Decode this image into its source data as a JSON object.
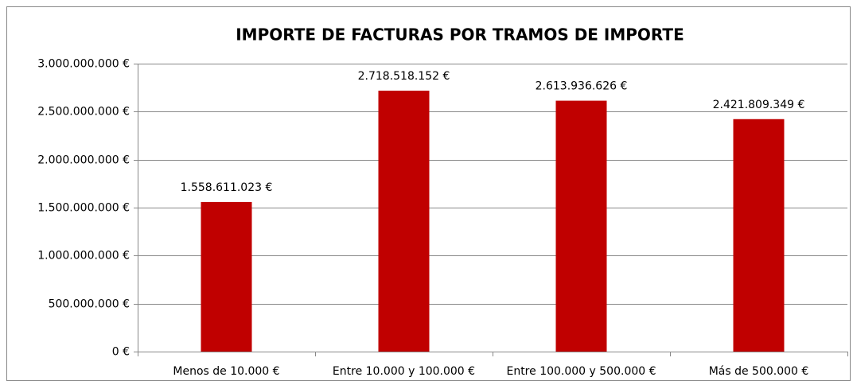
{
  "chart_data": {
    "type": "bar",
    "title": "IMPORTE DE FACTURAS POR TRAMOS DE IMPORTE",
    "categories": [
      "Menos de 10.000 €",
      "Entre 10.000 y 100.000 €",
      "Entre 100.000 y 500.000 €",
      "Más de 500.000 €"
    ],
    "values": [
      1558611023,
      2718518152,
      2613936626,
      2421809349
    ],
    "value_labels": [
      "1.558.611.023 €",
      "2.718.518.152 €",
      "2.613.936.626 €",
      "2.421.809.349 €"
    ],
    "color": "#c00000",
    "ylim": [
      0,
      3000000000
    ],
    "yticks": [
      {
        "value": 0,
        "label": "0 €"
      },
      {
        "value": 500000000,
        "label": "500.000.000 €"
      },
      {
        "value": 1000000000,
        "label": "1.000.000.000 €"
      },
      {
        "value": 1500000000,
        "label": "1.500.000.000 €"
      },
      {
        "value": 2000000000,
        "label": "2.000.000.000 €"
      },
      {
        "value": 2500000000,
        "label": "2.500.000.000 €"
      },
      {
        "value": 3000000000,
        "label": "3.000.000.000 €"
      }
    ],
    "grid": true
  }
}
